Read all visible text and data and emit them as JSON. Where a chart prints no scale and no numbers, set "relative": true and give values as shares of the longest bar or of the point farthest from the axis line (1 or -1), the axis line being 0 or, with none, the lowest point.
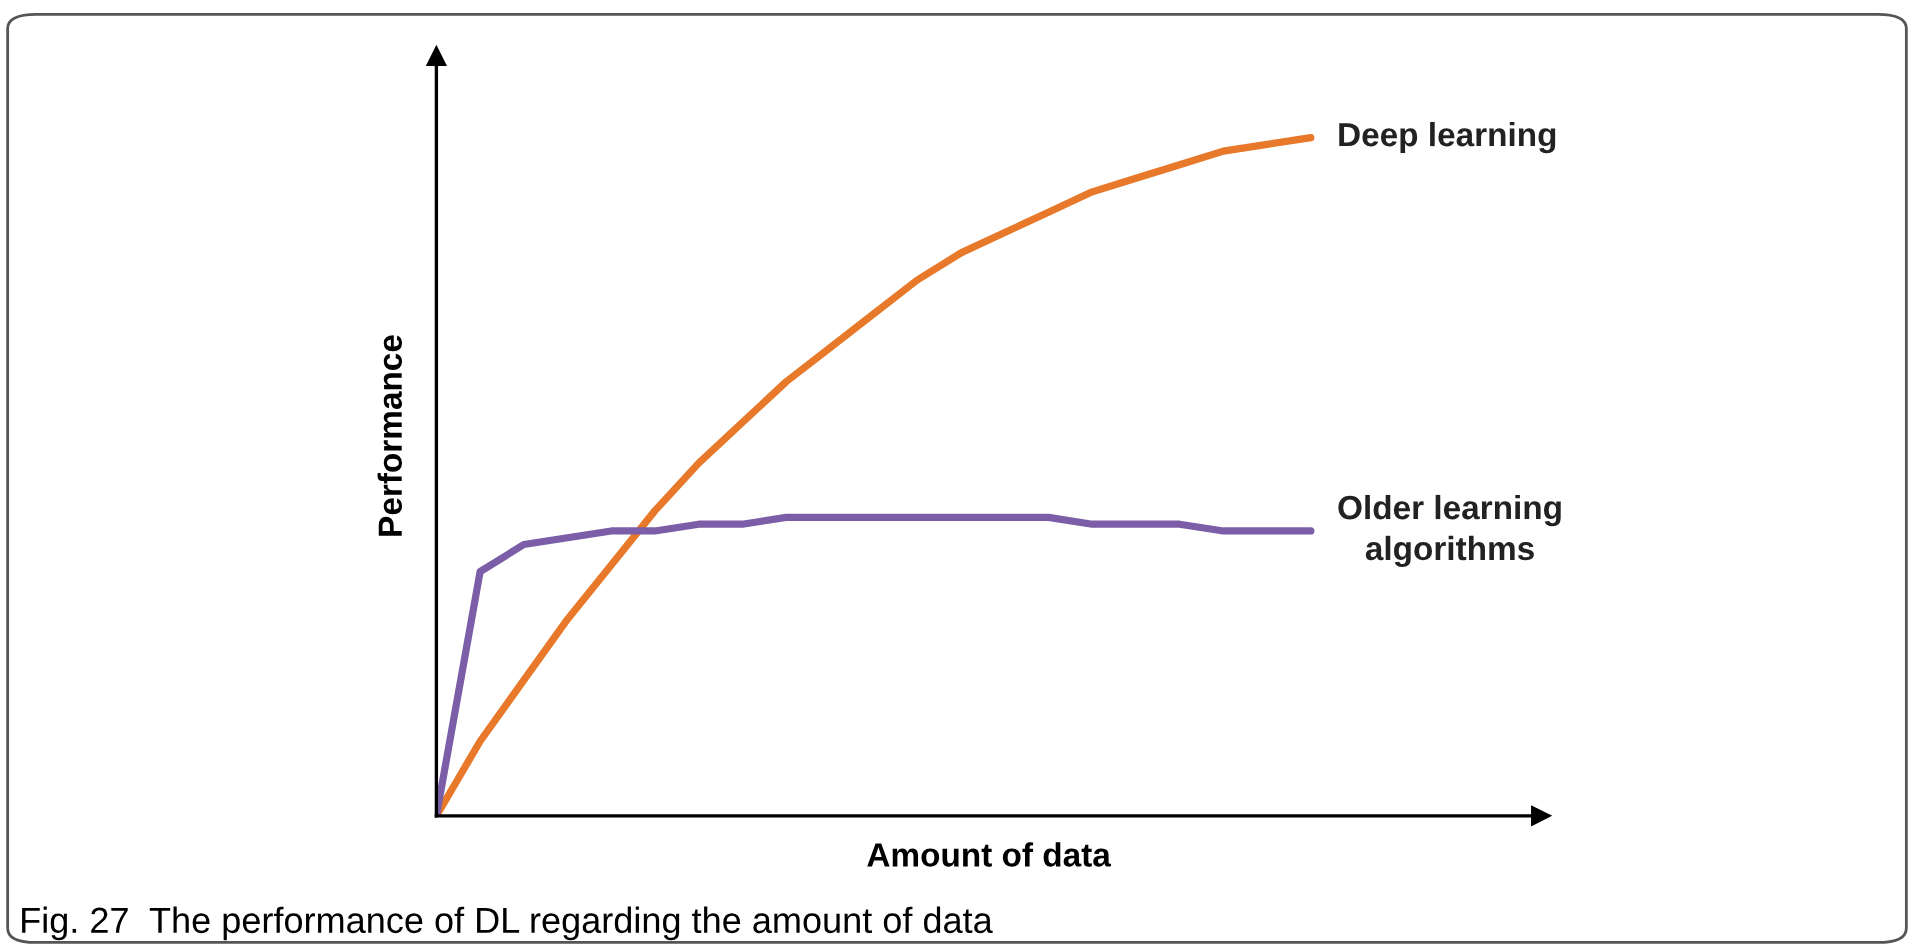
{
  "chart_data": {
    "type": "line",
    "relative": true,
    "xlabel": "Amount of data",
    "ylabel": "Performance",
    "categories": [
      null,
      null,
      null,
      null,
      null,
      null,
      null,
      null,
      null,
      null,
      null,
      null,
      null,
      null,
      null,
      null,
      null,
      null,
      null,
      null,
      null
    ],
    "series": [
      {
        "name": "Deep learning",
        "color": "#e8792a",
        "values": [
          0,
          0.11,
          0.2,
          0.29,
          0.37,
          0.45,
          0.52,
          0.58,
          0.64,
          0.69,
          0.74,
          0.79,
          0.83,
          0.86,
          0.89,
          0.92,
          0.94,
          0.96,
          0.98,
          0.99,
          1
        ]
      },
      {
        "name": "Older learning\nalgorithms",
        "color": "#7b5ea7",
        "values": [
          0,
          0.36,
          0.4,
          0.41,
          0.42,
          0.42,
          0.43,
          0.43,
          0.44,
          0.44,
          0.44,
          0.44,
          0.44,
          0.44,
          0.44,
          0.43,
          0.43,
          0.43,
          0.42,
          0.42,
          0.42
        ]
      }
    ],
    "legend": false,
    "annotations": [
      "Fig. 27  The performance of DL regarding the amount of data"
    ]
  }
}
